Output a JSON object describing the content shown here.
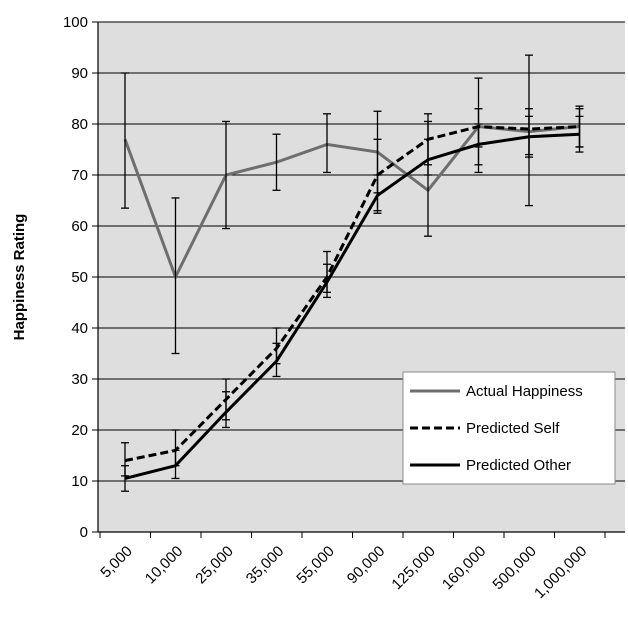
{
  "chart_data": {
    "type": "line",
    "title": "",
    "xlabel": "",
    "ylabel": "Happiness Rating",
    "categories": [
      "5,000",
      "10,000",
      "25,000",
      "35,000",
      "55,000",
      "90,000",
      "125,000",
      "160,000",
      "500,000",
      "1,000,000"
    ],
    "ylim": [
      0,
      100
    ],
    "yticks": [
      0,
      10,
      20,
      30,
      40,
      50,
      60,
      70,
      80,
      90,
      100
    ],
    "grid": true,
    "legend_position": "bottom-right",
    "series": [
      {
        "name": "Actual Happiness",
        "style": "solid-gray",
        "color": "#6e6e6e",
        "values": [
          77,
          50,
          70,
          72.5,
          76,
          74.5,
          67,
          79.5,
          78.5,
          79.5
        ],
        "error_low": [
          63.5,
          35,
          59.5,
          67,
          70.5,
          66.5,
          58,
          70.5,
          64,
          75.5
        ],
        "error_high": [
          90,
          65.5,
          80.5,
          78,
          82,
          82.5,
          80.5,
          89,
          93.5,
          83.5
        ]
      },
      {
        "name": "Predicted Self",
        "style": "dashed-black",
        "color": "#000000",
        "values": [
          14,
          16,
          26,
          36,
          50,
          70,
          77,
          79.5,
          79,
          79.5
        ],
        "error_low": [
          11,
          13,
          22,
          33,
          47,
          63,
          72,
          75.5,
          74,
          75.5
        ],
        "error_high": [
          17.5,
          20,
          30,
          40,
          55,
          77,
          82,
          83,
          83,
          83
        ]
      },
      {
        "name": "Predicted Other",
        "style": "solid-black",
        "color": "#000000",
        "values": [
          10.5,
          13,
          23.5,
          33.5,
          49,
          66,
          73,
          76,
          77.5,
          78
        ],
        "error_low": [
          8,
          10.5,
          20.5,
          30.5,
          46,
          62.5,
          70,
          72,
          73.5,
          74.5
        ],
        "error_high": [
          13,
          16,
          27.5,
          37,
          52.5,
          70,
          77,
          80,
          81.5,
          81.5
        ]
      }
    ]
  }
}
